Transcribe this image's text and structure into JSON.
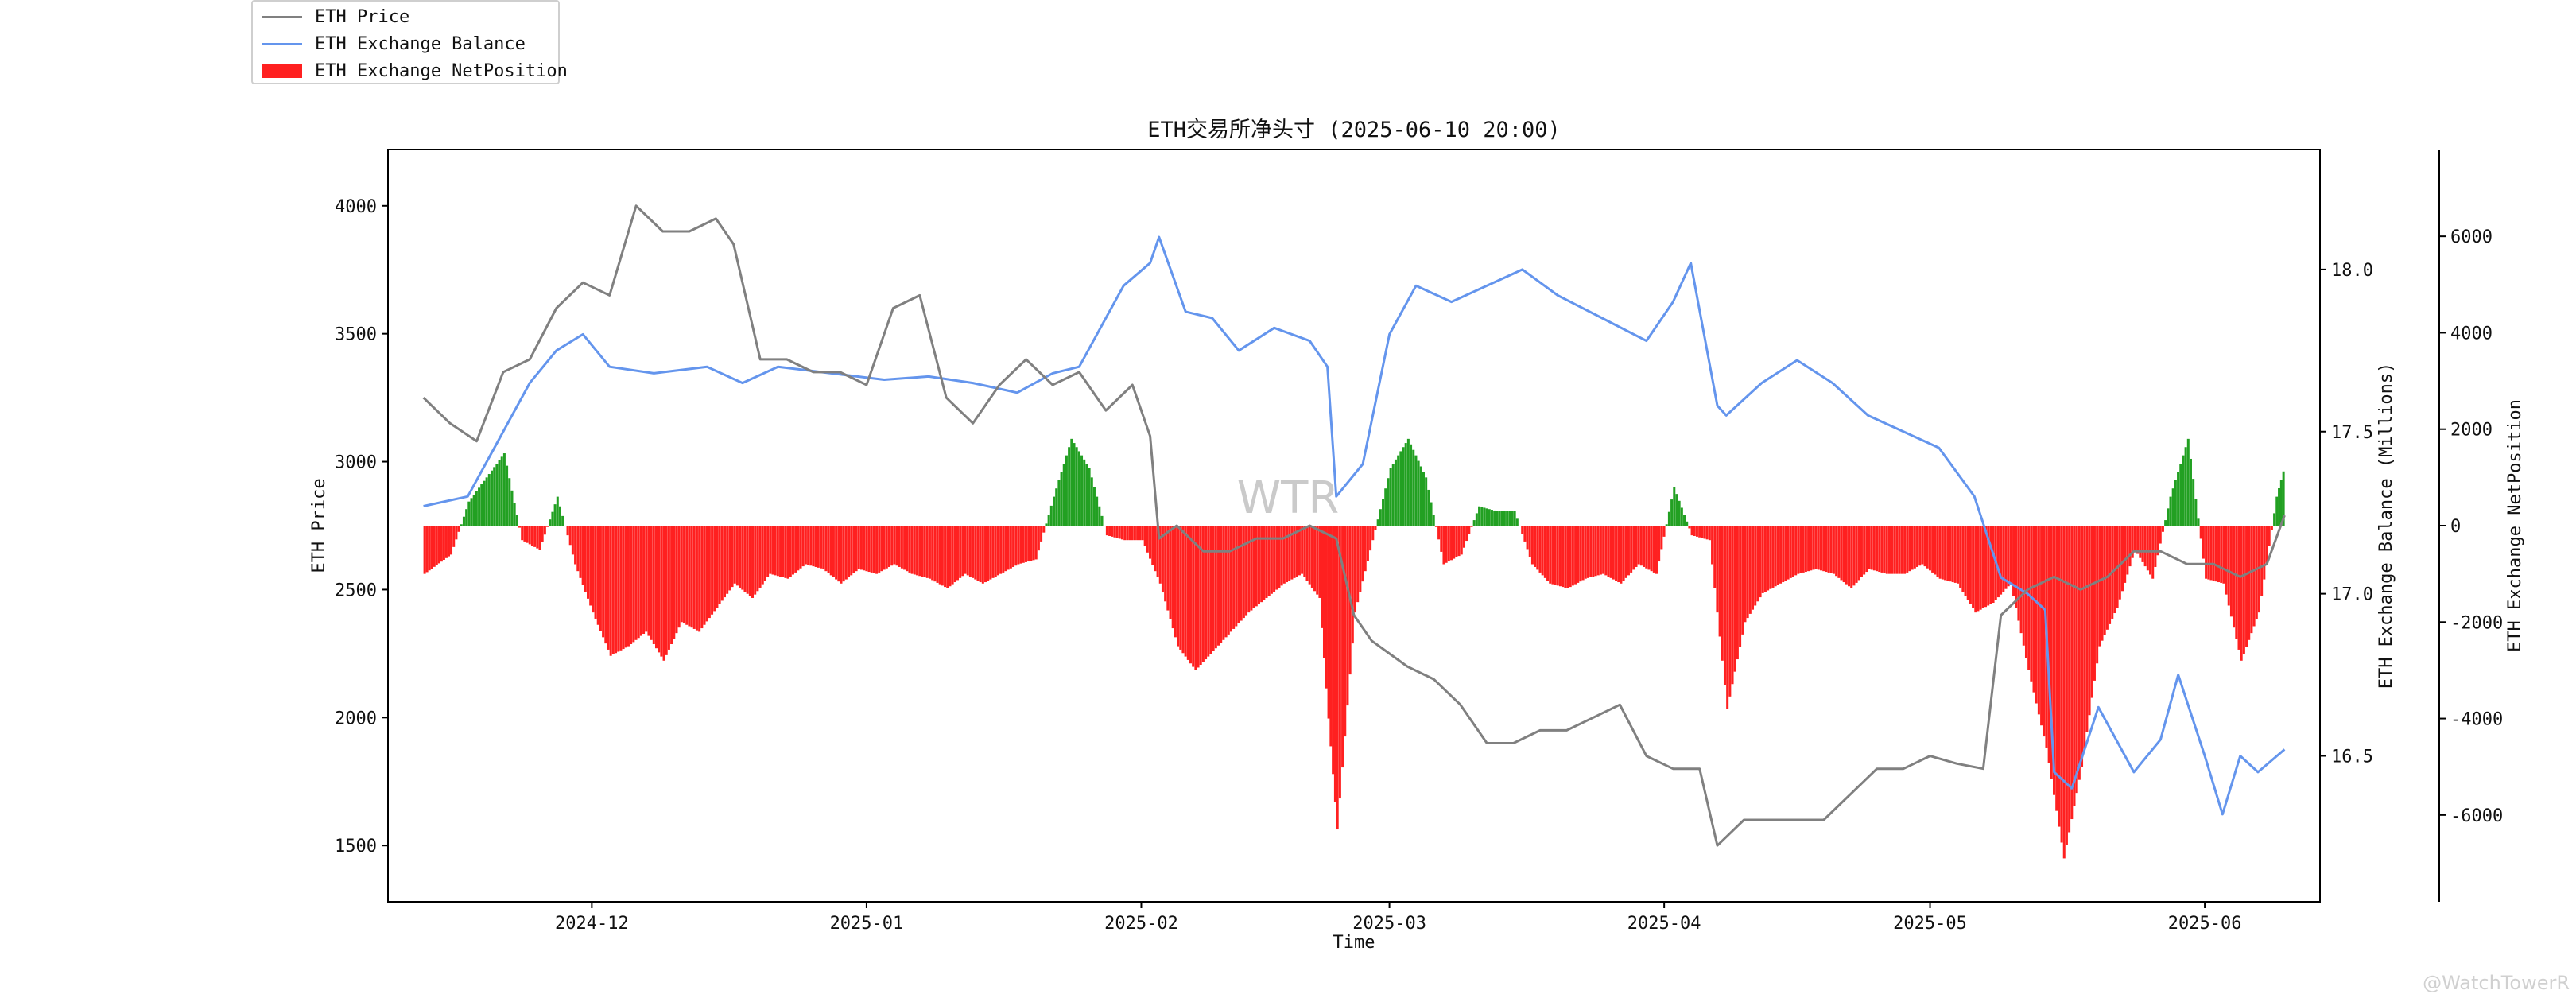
{
  "legend": [
    {
      "label": "ETH Price",
      "color": "#808080",
      "kind": "line"
    },
    {
      "label": "ETH Exchange Balance",
      "color": "#6495ed",
      "kind": "line"
    },
    {
      "label": "ETH Exchange NetPosition",
      "color": "#ff2020",
      "kind": "bar"
    }
  ],
  "watermark_center": "WTR",
  "watermark_corner": "@WatchTowerR",
  "chart_data": {
    "type": "line",
    "title": "ETH交易所净头寸 (2025-06-10 20:00)",
    "xlabel": "Time",
    "ylabel_left": "ETH Price",
    "ylabel_right1": "ETH Exchange Balance (Millions)",
    "ylabel_right2": "ETH Exchange NetPosition",
    "x_range": [
      "2024-11-12",
      "2025-06-10"
    ],
    "x_ticks": [
      "2024-12",
      "2025-01",
      "2025-02",
      "2025-03",
      "2025-04",
      "2025-05",
      "2025-06"
    ],
    "y_left": {
      "range": [
        1280,
        4220
      ],
      "ticks": [
        1500,
        2000,
        2500,
        3000,
        3500,
        4000
      ]
    },
    "y_right1": {
      "range": [
        16.05,
        18.37
      ],
      "ticks": [
        16.5,
        17.0,
        17.5,
        18.0
      ],
      "tick_labels": [
        "16.5",
        "17.0",
        "17.5",
        "18.0"
      ]
    },
    "y_right2": {
      "range": [
        -7800,
        7800
      ],
      "ticks": [
        -6000,
        -4000,
        -2000,
        0,
        2000,
        4000,
        6000
      ]
    },
    "grid": false,
    "legend_position": "top-left outside",
    "colors": {
      "price": "#808080",
      "balance": "#6495ed",
      "positive": "#22a022",
      "negative": "#ff2020"
    },
    "series": [
      {
        "name": "ETH Price",
        "axis": "left",
        "x": [
          "2024-11-12",
          "2024-11-15",
          "2024-11-18",
          "2024-11-21",
          "2024-11-24",
          "2024-11-27",
          "2024-11-30",
          "2024-12-03",
          "2024-12-06",
          "2024-12-09",
          "2024-12-12",
          "2024-12-15",
          "2024-12-17",
          "2024-12-20",
          "2024-12-23",
          "2024-12-26",
          "2024-12-29",
          "2025-01-01",
          "2025-01-04",
          "2025-01-07",
          "2025-01-10",
          "2025-01-13",
          "2025-01-16",
          "2025-01-19",
          "2025-01-22",
          "2025-01-25",
          "2025-01-28",
          "2025-01-31",
          "2025-02-02",
          "2025-02-03",
          "2025-02-05",
          "2025-02-08",
          "2025-02-11",
          "2025-02-14",
          "2025-02-17",
          "2025-02-20",
          "2025-02-23",
          "2025-02-25",
          "2025-02-27",
          "2025-03-01",
          "2025-03-03",
          "2025-03-06",
          "2025-03-09",
          "2025-03-12",
          "2025-03-15",
          "2025-03-18",
          "2025-03-21",
          "2025-03-24",
          "2025-03-27",
          "2025-03-30",
          "2025-04-02",
          "2025-04-05",
          "2025-04-07",
          "2025-04-10",
          "2025-04-13",
          "2025-04-16",
          "2025-04-19",
          "2025-04-22",
          "2025-04-25",
          "2025-04-28",
          "2025-05-01",
          "2025-05-04",
          "2025-05-07",
          "2025-05-09",
          "2025-05-12",
          "2025-05-15",
          "2025-05-18",
          "2025-05-21",
          "2025-05-24",
          "2025-05-27",
          "2025-05-30",
          "2025-06-02",
          "2025-06-05",
          "2025-06-08",
          "2025-06-10"
        ],
        "values": [
          3250,
          3150,
          3080,
          3350,
          3400,
          3600,
          3700,
          3650,
          4000,
          3900,
          3900,
          3950,
          3850,
          3400,
          3400,
          3350,
          3350,
          3300,
          3600,
          3650,
          3250,
          3150,
          3300,
          3400,
          3300,
          3350,
          3200,
          3300,
          3100,
          2700,
          2750,
          2650,
          2650,
          2700,
          2700,
          2750,
          2700,
          2400,
          2300,
          2250,
          2200,
          2150,
          2050,
          1900,
          1900,
          1950,
          1950,
          2000,
          2050,
          1850,
          1800,
          1800,
          1500,
          1600,
          1600,
          1600,
          1600,
          1700,
          1800,
          1800,
          1850,
          1820,
          1800,
          2400,
          2500,
          2550,
          2500,
          2550,
          2650,
          2650,
          2600,
          2600,
          2550,
          2600,
          2790
        ]
      },
      {
        "name": "ETH Exchange Balance",
        "axis": "right1",
        "x": [
          "2024-11-12",
          "2024-11-17",
          "2024-11-20",
          "2024-11-24",
          "2024-11-27",
          "2024-11-30",
          "2024-12-03",
          "2024-12-08",
          "2024-12-14",
          "2024-12-18",
          "2024-12-22",
          "2024-12-28",
          "2025-01-03",
          "2025-01-08",
          "2025-01-13",
          "2025-01-18",
          "2025-01-22",
          "2025-01-25",
          "2025-01-30",
          "2025-02-02",
          "2025-02-03",
          "2025-02-06",
          "2025-02-09",
          "2025-02-12",
          "2025-02-16",
          "2025-02-20",
          "2025-02-22",
          "2025-02-23",
          "2025-02-26",
          "2025-03-01",
          "2025-03-04",
          "2025-03-08",
          "2025-03-12",
          "2025-03-16",
          "2025-03-20",
          "2025-03-25",
          "2025-03-30",
          "2025-04-02",
          "2025-04-04",
          "2025-04-07",
          "2025-04-08",
          "2025-04-12",
          "2025-04-16",
          "2025-04-20",
          "2025-04-24",
          "2025-04-28",
          "2025-05-02",
          "2025-05-06",
          "2025-05-09",
          "2025-05-12",
          "2025-05-14",
          "2025-05-15",
          "2025-05-17",
          "2025-05-20",
          "2025-05-24",
          "2025-05-27",
          "2025-05-29",
          "2025-06-01",
          "2025-06-03",
          "2025-06-05",
          "2025-06-07",
          "2025-06-10"
        ],
        "values": [
          17.27,
          17.3,
          17.45,
          17.65,
          17.75,
          17.8,
          17.7,
          17.68,
          17.7,
          17.65,
          17.7,
          17.68,
          17.66,
          17.67,
          17.65,
          17.62,
          17.68,
          17.7,
          17.95,
          18.02,
          18.1,
          17.87,
          17.85,
          17.75,
          17.82,
          17.78,
          17.7,
          17.3,
          17.4,
          17.8,
          17.95,
          17.9,
          17.95,
          18.0,
          17.92,
          17.85,
          17.78,
          17.9,
          18.02,
          17.58,
          17.55,
          17.65,
          17.72,
          17.65,
          17.55,
          17.5,
          17.45,
          17.3,
          17.05,
          17.0,
          16.95,
          16.45,
          16.4,
          16.65,
          16.45,
          16.55,
          16.75,
          16.5,
          16.32,
          16.5,
          16.45,
          16.52
        ]
      },
      {
        "name": "ETH Exchange NetPosition",
        "axis": "right2",
        "type": "bar",
        "x": [
          "2024-11-12",
          "2024-11-15",
          "2024-11-17",
          "2024-11-19",
          "2024-11-21",
          "2024-11-23",
          "2024-11-25",
          "2024-11-27",
          "2024-11-29",
          "2024-12-01",
          "2024-12-03",
          "2024-12-05",
          "2024-12-07",
          "2024-12-09",
          "2024-12-11",
          "2024-12-13",
          "2024-12-15",
          "2024-12-17",
          "2024-12-19",
          "2024-12-21",
          "2024-12-23",
          "2024-12-25",
          "2024-12-27",
          "2024-12-29",
          "2024-12-31",
          "2025-01-02",
          "2025-01-04",
          "2025-01-06",
          "2025-01-08",
          "2025-01-10",
          "2025-01-12",
          "2025-01-14",
          "2025-01-16",
          "2025-01-18",
          "2025-01-20",
          "2025-01-22",
          "2025-01-24",
          "2025-01-26",
          "2025-01-28",
          "2025-01-30",
          "2025-02-01",
          "2025-02-03",
          "2025-02-05",
          "2025-02-07",
          "2025-02-09",
          "2025-02-11",
          "2025-02-13",
          "2025-02-15",
          "2025-02-17",
          "2025-02-19",
          "2025-02-21",
          "2025-02-22",
          "2025-02-23",
          "2025-02-25",
          "2025-02-27",
          "2025-03-01",
          "2025-03-03",
          "2025-03-05",
          "2025-03-07",
          "2025-03-09",
          "2025-03-11",
          "2025-03-13",
          "2025-03-15",
          "2025-03-17",
          "2025-03-19",
          "2025-03-21",
          "2025-03-23",
          "2025-03-25",
          "2025-03-27",
          "2025-03-29",
          "2025-03-31",
          "2025-04-02",
          "2025-04-04",
          "2025-04-06",
          "2025-04-08",
          "2025-04-10",
          "2025-04-12",
          "2025-04-14",
          "2025-04-16",
          "2025-04-18",
          "2025-04-20",
          "2025-04-22",
          "2025-04-24",
          "2025-04-26",
          "2025-04-28",
          "2025-04-30",
          "2025-05-02",
          "2025-05-04",
          "2025-05-06",
          "2025-05-08",
          "2025-05-10",
          "2025-05-12",
          "2025-05-14",
          "2025-05-16",
          "2025-05-18",
          "2025-05-20",
          "2025-05-22",
          "2025-05-24",
          "2025-05-26",
          "2025-05-28",
          "2025-05-30",
          "2025-06-01",
          "2025-06-03",
          "2025-06-05",
          "2025-06-07",
          "2025-06-09",
          "2025-06-10"
        ],
        "values": [
          -1000,
          -600,
          500,
          1000,
          1500,
          -300,
          -500,
          600,
          -800,
          -1800,
          -2700,
          -2500,
          -2200,
          -2800,
          -2000,
          -2200,
          -1700,
          -1200,
          -1500,
          -1000,
          -1100,
          -800,
          -900,
          -1200,
          -900,
          -1000,
          -800,
          -1000,
          -1100,
          -1300,
          -1000,
          -1200,
          -1000,
          -800,
          -700,
          600,
          1800,
          1200,
          -200,
          -300,
          -300,
          -1200,
          -2500,
          -3000,
          -2600,
          -2200,
          -1800,
          -1500,
          -1200,
          -1000,
          -1500,
          -4000,
          -6300,
          -1800,
          -300,
          1200,
          1800,
          1000,
          -800,
          -600,
          400,
          300,
          300,
          -800,
          -1200,
          -1300,
          -1100,
          -1000,
          -1200,
          -800,
          -1000,
          800,
          -200,
          -300,
          -3800,
          -2000,
          -1400,
          -1200,
          -1000,
          -900,
          -1000,
          -1300,
          -900,
          -1000,
          -1000,
          -800,
          -1100,
          -1200,
          -1800,
          -1600,
          -1200,
          -3000,
          -4600,
          -6900,
          -5000,
          -2500,
          -1700,
          -500,
          -1100,
          600,
          1800,
          -1100,
          -1200,
          -2800,
          -1800,
          600,
          1300
        ]
      }
    ]
  }
}
